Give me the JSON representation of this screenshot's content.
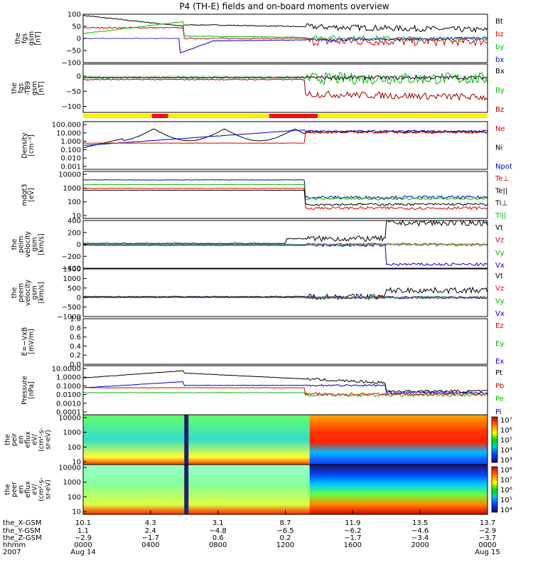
{
  "chart_data": {
    "type": "line",
    "title": "P4 (TH-E) fields and on-board moments overview",
    "panels": [
      {
        "id": "fgs",
        "ylabel": [
          "the",
          "fgs",
          "gsm",
          "[nT]"
        ],
        "ylim": [
          -100,
          100
        ],
        "ticks": [
          "100",
          "50",
          "0",
          "−50",
          "−100"
        ],
        "tick_values": [
          100,
          50,
          0,
          -50,
          -100
        ],
        "legend": [
          {
            "label": "Bt",
            "color": "#000000"
          },
          {
            "label": "bz",
            "color": "#dd0000"
          },
          {
            "label": "by",
            "color": "#00bb00"
          },
          {
            "label": "bx",
            "color": "#0000cc"
          }
        ]
      },
      {
        "id": "fgs_minus_t89",
        "ylabel": [
          "the",
          "fgs",
          "-T89",
          "gsm",
          "[nT]"
        ],
        "ylim": [
          -120,
          40
        ],
        "ticks": [
          "0",
          "−50",
          "−100"
        ],
        "tick_values": [
          0,
          -50,
          -100
        ],
        "legend": [
          {
            "label": "Bx",
            "color": "#000000"
          },
          {
            "label": "By",
            "color": "#00bb00"
          },
          {
            "label": "Bz",
            "color": "#990000"
          }
        ]
      },
      {
        "id": "density",
        "ylabel": [
          "Density",
          "[cm⁻³]"
        ],
        "log": true,
        "ticks": [
          "100.000",
          "10.000",
          "1.000",
          "0.100",
          "0.010",
          "0.001"
        ],
        "legend": [
          {
            "label": "Ne",
            "color": "#dd0000"
          },
          {
            "label": "Ni",
            "color": "#000000"
          },
          {
            "label": "Npot",
            "color": "#0000cc"
          }
        ]
      },
      {
        "id": "temperature",
        "ylabel": [
          "mdgt3",
          "[eV]"
        ],
        "log": true,
        "ticks": [
          "10000",
          "1000",
          "100",
          "10"
        ],
        "legend": [
          {
            "label": "Te⊥",
            "color": "#dd0000"
          },
          {
            "label": "Te||",
            "color": "#000000"
          },
          {
            "label": "Ti⊥",
            "color": "#000000"
          },
          {
            "label": "Ti||",
            "color": "#00bb00"
          }
        ]
      },
      {
        "id": "peim_velocity",
        "ylabel": [
          "the",
          "peim",
          "velocity",
          "gsm",
          "[km/s]"
        ],
        "ylim": [
          -400,
          400
        ],
        "ticks": [
          "400",
          "200",
          "0",
          "−200",
          "−400"
        ],
        "tick_values": [
          400,
          200,
          0,
          -200,
          -400
        ],
        "legend": [
          {
            "label": "Vt",
            "color": "#000000"
          },
          {
            "label": "Vz",
            "color": "#dd0000"
          },
          {
            "label": "Vy",
            "color": "#00bb00"
          },
          {
            "label": "Vx",
            "color": "#0000cc"
          }
        ]
      },
      {
        "id": "peem_velocity",
        "ylabel": [
          "the",
          "peem",
          "velocity",
          "gsm",
          "[km/s]"
        ],
        "ylim": [
          -1000,
          1500
        ],
        "ticks": [
          "1500",
          "1000",
          "500",
          "0",
          "−500",
          "−1000"
        ],
        "tick_values": [
          1500,
          1000,
          500,
          0,
          -500,
          -1000
        ],
        "legend": [
          {
            "label": "Vt",
            "color": "#000000"
          },
          {
            "label": "Vz",
            "color": "#dd0000"
          },
          {
            "label": "Vy",
            "color": "#00bb00"
          },
          {
            "label": "Vx",
            "color": "#0000cc"
          }
        ]
      },
      {
        "id": "e_vxb",
        "ylabel": [
          "E=−VxB",
          "[mV/m]"
        ],
        "ylim": [
          0,
          1
        ],
        "ticks": [
          "1.0",
          "0.8",
          "0.6",
          "0.4",
          "0.2",
          "0.0"
        ],
        "tick_values": [
          1.0,
          0.8,
          0.6,
          0.4,
          0.2,
          0.0
        ],
        "legend": [
          {
            "label": "Ez",
            "color": "#dd0000"
          },
          {
            "label": "Ey",
            "color": "#00bb00"
          },
          {
            "label": "Ex",
            "color": "#0000cc"
          }
        ]
      },
      {
        "id": "pressure",
        "ylabel": [
          "Pressure",
          "[nPa]"
        ],
        "log": true,
        "ticks": [
          "10.0000",
          "1.0000",
          "0.1000",
          "0.0100",
          "0.0010",
          "0.0001"
        ],
        "legend": [
          {
            "label": "Pt",
            "color": "#000000"
          },
          {
            "label": "Pb",
            "color": "#dd0000"
          },
          {
            "label": "Pe",
            "color": "#00bb00"
          },
          {
            "label": "Pi",
            "color": "#0000cc"
          }
        ]
      },
      {
        "id": "peir_eflux",
        "ylabel": [
          "the",
          "peir",
          "en",
          "eflux",
          "eV/",
          "(cm²-s-",
          "sr-eV)"
        ],
        "log": true,
        "ticks": [
          "10000",
          "1000",
          "100",
          "10"
        ],
        "colorbar_ticks": [
          "10⁷",
          "10⁶",
          "10⁵",
          "10⁴",
          "10³"
        ]
      },
      {
        "id": "peer_eflux",
        "ylabel": [
          "the",
          "peer",
          "en",
          "eflux",
          "eV/",
          "(cm²-s-",
          "sr-eV)"
        ],
        "log": true,
        "ticks": [
          "10000",
          "1000",
          "100",
          "10"
        ],
        "colorbar_ticks": [
          "10⁸",
          "10⁷",
          "10⁶",
          "10⁵",
          "10⁴"
        ]
      }
    ],
    "x_axis": {
      "row_labels": [
        "the_X-GSM",
        "the_Y-GSM",
        "the_Z-GSM",
        "hhmm",
        "2007"
      ],
      "columns": [
        {
          "x": "10.1",
          "y": "1.1",
          "z": "−2.9",
          "hhmm": "0000",
          "date": "Aug 14"
        },
        {
          "x": "4.3",
          "y": "2.4",
          "z": "−1.7",
          "hhmm": "0400",
          "date": ""
        },
        {
          "x": "3.1",
          "y": "−4.8",
          "z": "0.6",
          "hhmm": "0800",
          "date": ""
        },
        {
          "x": "8.7",
          "y": "−6.5",
          "z": "0.2",
          "hhmm": "1200",
          "date": ""
        },
        {
          "x": "11.9",
          "y": "−6.2",
          "z": "−1.7",
          "hhmm": "1600",
          "date": ""
        },
        {
          "x": "13.5",
          "y": "−4.6",
          "z": "−3.4",
          "hhmm": "2000",
          "date": ""
        },
        {
          "x": "13.7",
          "y": "−2.9",
          "z": "−3.7",
          "hhmm": "0000",
          "date": "Aug 15"
        }
      ]
    }
  }
}
